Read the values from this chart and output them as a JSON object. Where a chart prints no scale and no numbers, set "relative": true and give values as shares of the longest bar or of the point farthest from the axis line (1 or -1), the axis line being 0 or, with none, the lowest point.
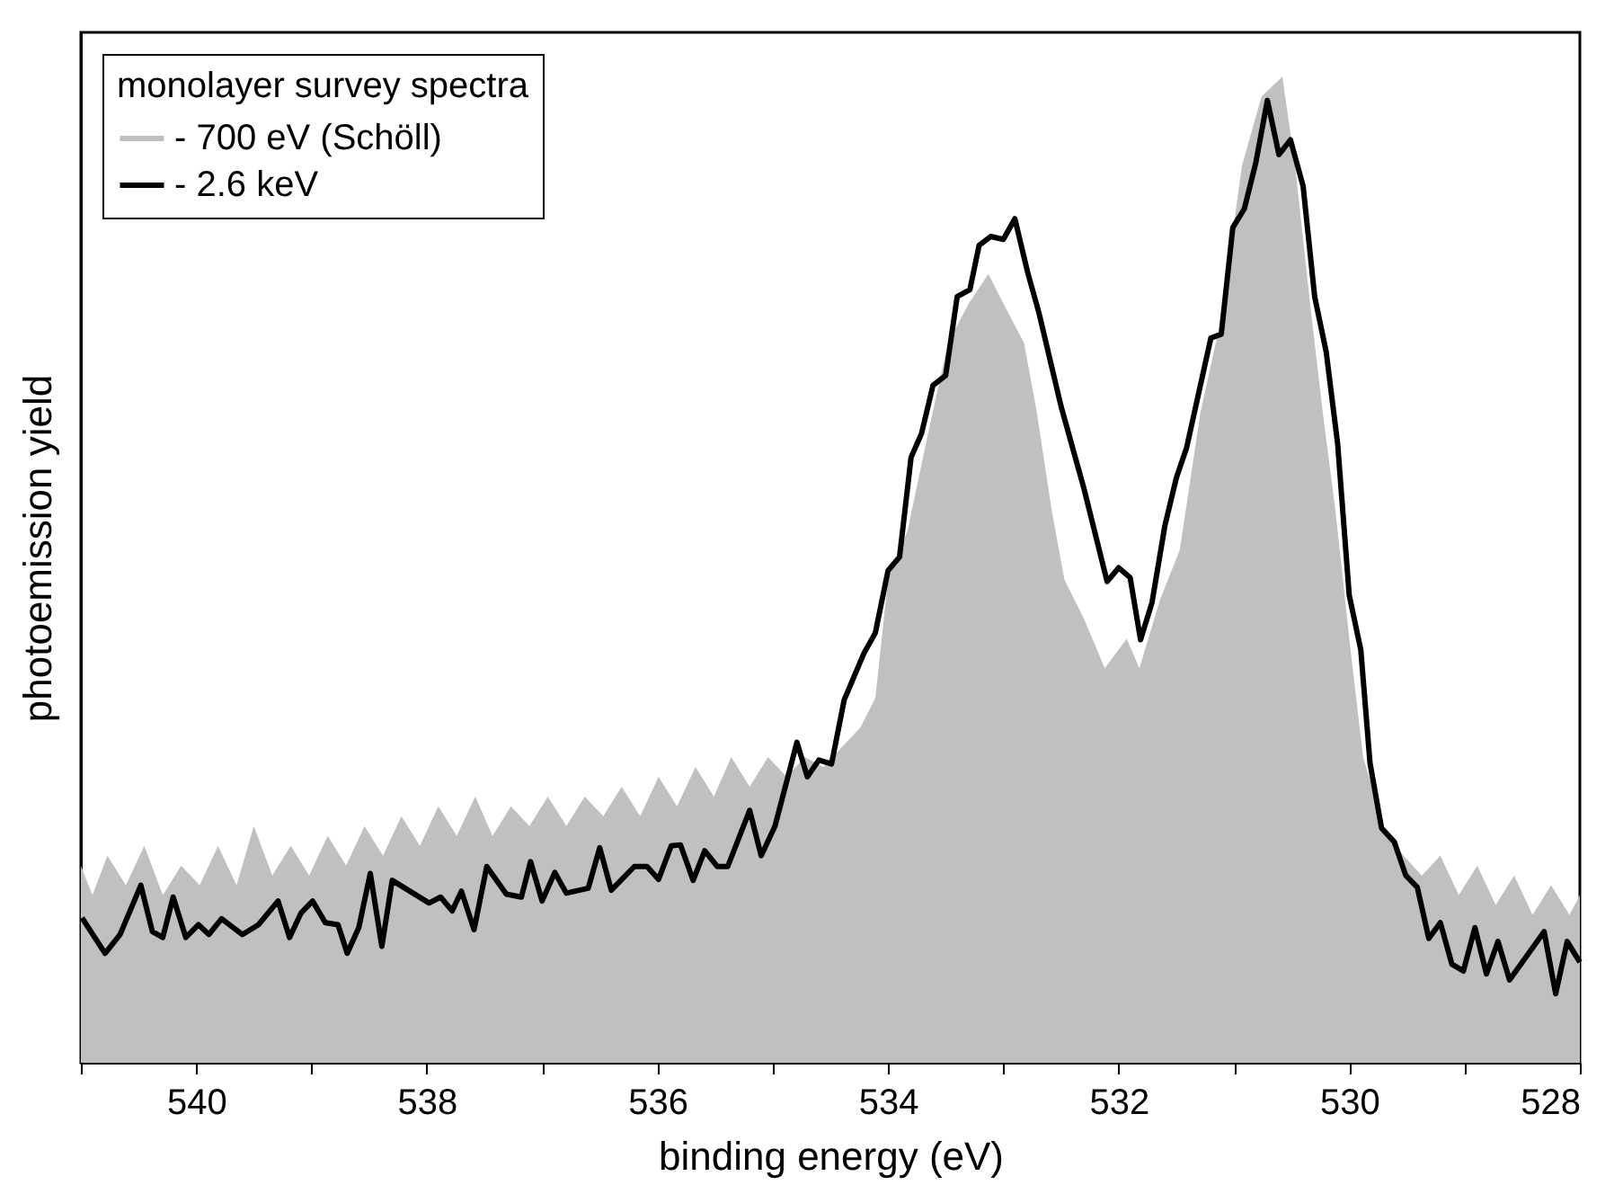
{
  "chart_data": {
    "type": "area",
    "relative": true,
    "xlabel": "binding energy (eV)",
    "ylabel": "photoemission yield",
    "legend_title": "monolayer survey spectra",
    "legend": "top left",
    "grid": false,
    "tick_labels": "x",
    "xlim": [
      541,
      528
    ],
    "xticks": [
      {
        "value": 541,
        "label": null
      },
      540,
      {
        "value": 539,
        "label": null
      },
      538,
      {
        "value": 537,
        "label": null
      },
      536,
      {
        "value": 535,
        "label": null
      },
      534,
      {
        "value": 533,
        "label": null
      },
      532,
      {
        "value": 531,
        "label": null
      },
      530,
      {
        "value": 529,
        "label": null
      },
      528
    ],
    "series": [
      {
        "name": "- 700 eV (Schöll)",
        "color": "#c0c0c0",
        "x": [
          541.0,
          540.9,
          540.77,
          540.61,
          540.45,
          540.29,
          540.13,
          539.97,
          539.81,
          539.65,
          539.5,
          539.34,
          539.18,
          539.02,
          538.86,
          538.7,
          538.54,
          538.38,
          538.22,
          538.06,
          537.9,
          537.74,
          537.58,
          537.43,
          537.27,
          537.11,
          536.95,
          536.79,
          536.63,
          536.47,
          536.31,
          536.15,
          535.99,
          535.83,
          535.67,
          535.51,
          535.36,
          535.2,
          535.04,
          534.88,
          534.72,
          534.56,
          534.4,
          534.24,
          534.11,
          534.0,
          533.83,
          533.65,
          533.48,
          533.3,
          533.13,
          533.0,
          532.82,
          532.71,
          532.58,
          532.47,
          532.3,
          532.12,
          531.93,
          531.82,
          531.64,
          531.47,
          531.29,
          531.12,
          530.93,
          530.76,
          530.58,
          530.47,
          530.34,
          530.23,
          530.12,
          529.99,
          529.88,
          529.7,
          529.53,
          529.37,
          529.21,
          529.05,
          528.89,
          528.73,
          528.57,
          528.41,
          528.25,
          528.09,
          528.0
        ],
        "values": [
          0.2,
          0.17,
          0.21,
          0.18,
          0.22,
          0.17,
          0.2,
          0.18,
          0.22,
          0.18,
          0.24,
          0.19,
          0.22,
          0.19,
          0.23,
          0.2,
          0.24,
          0.21,
          0.25,
          0.22,
          0.26,
          0.23,
          0.27,
          0.23,
          0.26,
          0.24,
          0.27,
          0.24,
          0.27,
          0.25,
          0.28,
          0.25,
          0.29,
          0.26,
          0.3,
          0.27,
          0.31,
          0.28,
          0.31,
          0.29,
          0.31,
          0.3,
          0.32,
          0.34,
          0.37,
          0.49,
          0.54,
          0.64,
          0.73,
          0.77,
          0.8,
          0.77,
          0.73,
          0.66,
          0.56,
          0.49,
          0.45,
          0.4,
          0.43,
          0.4,
          0.47,
          0.52,
          0.66,
          0.75,
          0.91,
          0.98,
          1.0,
          0.91,
          0.77,
          0.66,
          0.56,
          0.42,
          0.31,
          0.24,
          0.21,
          0.19,
          0.21,
          0.17,
          0.2,
          0.16,
          0.19,
          0.15,
          0.18,
          0.15,
          0.17
        ]
      },
      {
        "name": "- 2.6 keV",
        "type": "line",
        "color": "#000000",
        "x": [
          540.99,
          540.79,
          540.66,
          540.48,
          540.38,
          540.29,
          540.2,
          540.09,
          539.98,
          539.89,
          539.78,
          539.6,
          539.46,
          539.29,
          539.19,
          539.09,
          538.99,
          538.88,
          538.77,
          538.69,
          538.59,
          538.49,
          538.39,
          538.3,
          537.98,
          537.88,
          537.78,
          537.7,
          537.59,
          537.48,
          537.31,
          537.18,
          537.1,
          537.0,
          536.89,
          536.79,
          536.6,
          536.5,
          536.4,
          536.2,
          536.09,
          535.99,
          535.88,
          535.8,
          535.69,
          535.59,
          535.48,
          535.39,
          535.2,
          535.1,
          534.98,
          534.79,
          534.7,
          534.6,
          534.49,
          534.38,
          534.21,
          534.11,
          534.0,
          533.9,
          533.8,
          533.71,
          533.61,
          533.5,
          533.4,
          533.29,
          533.21,
          533.11,
          533.0,
          532.9,
          532.79,
          532.69,
          532.5,
          532.3,
          532.1,
          532.0,
          531.9,
          531.81,
          531.71,
          531.6,
          531.5,
          531.41,
          531.2,
          531.11,
          531.01,
          530.91,
          530.81,
          530.71,
          530.61,
          530.51,
          530.4,
          530.3,
          530.2,
          530.1,
          530.0,
          529.9,
          529.82,
          529.72,
          529.61,
          529.51,
          529.41,
          529.31,
          529.21,
          529.11,
          529.01,
          528.91,
          528.81,
          528.71,
          528.61,
          528.31,
          528.21,
          528.11,
          528.0
        ],
        "values": [
          0.147,
          0.111,
          0.13,
          0.18,
          0.133,
          0.127,
          0.168,
          0.127,
          0.14,
          0.13,
          0.146,
          0.13,
          0.14,
          0.164,
          0.127,
          0.152,
          0.164,
          0.142,
          0.14,
          0.111,
          0.137,
          0.192,
          0.118,
          0.185,
          0.162,
          0.168,
          0.154,
          0.174,
          0.135,
          0.199,
          0.171,
          0.168,
          0.204,
          0.164,
          0.193,
          0.172,
          0.177,
          0.218,
          0.175,
          0.199,
          0.199,
          0.186,
          0.22,
          0.221,
          0.185,
          0.215,
          0.199,
          0.199,
          0.256,
          0.21,
          0.24,
          0.325,
          0.29,
          0.307,
          0.303,
          0.368,
          0.415,
          0.436,
          0.499,
          0.513,
          0.614,
          0.638,
          0.687,
          0.697,
          0.777,
          0.784,
          0.829,
          0.838,
          0.835,
          0.856,
          0.802,
          0.76,
          0.666,
          0.582,
          0.488,
          0.502,
          0.492,
          0.429,
          0.467,
          0.544,
          0.593,
          0.624,
          0.735,
          0.739,
          0.847,
          0.866,
          0.913,
          0.976,
          0.921,
          0.936,
          0.889,
          0.777,
          0.721,
          0.627,
          0.474,
          0.419,
          0.304,
          0.238,
          0.224,
          0.19,
          0.178,
          0.126,
          0.142,
          0.1,
          0.093,
          0.137,
          0.09,
          0.123,
          0.084,
          0.133,
          0.07,
          0.123,
          0.102
        ]
      }
    ]
  }
}
